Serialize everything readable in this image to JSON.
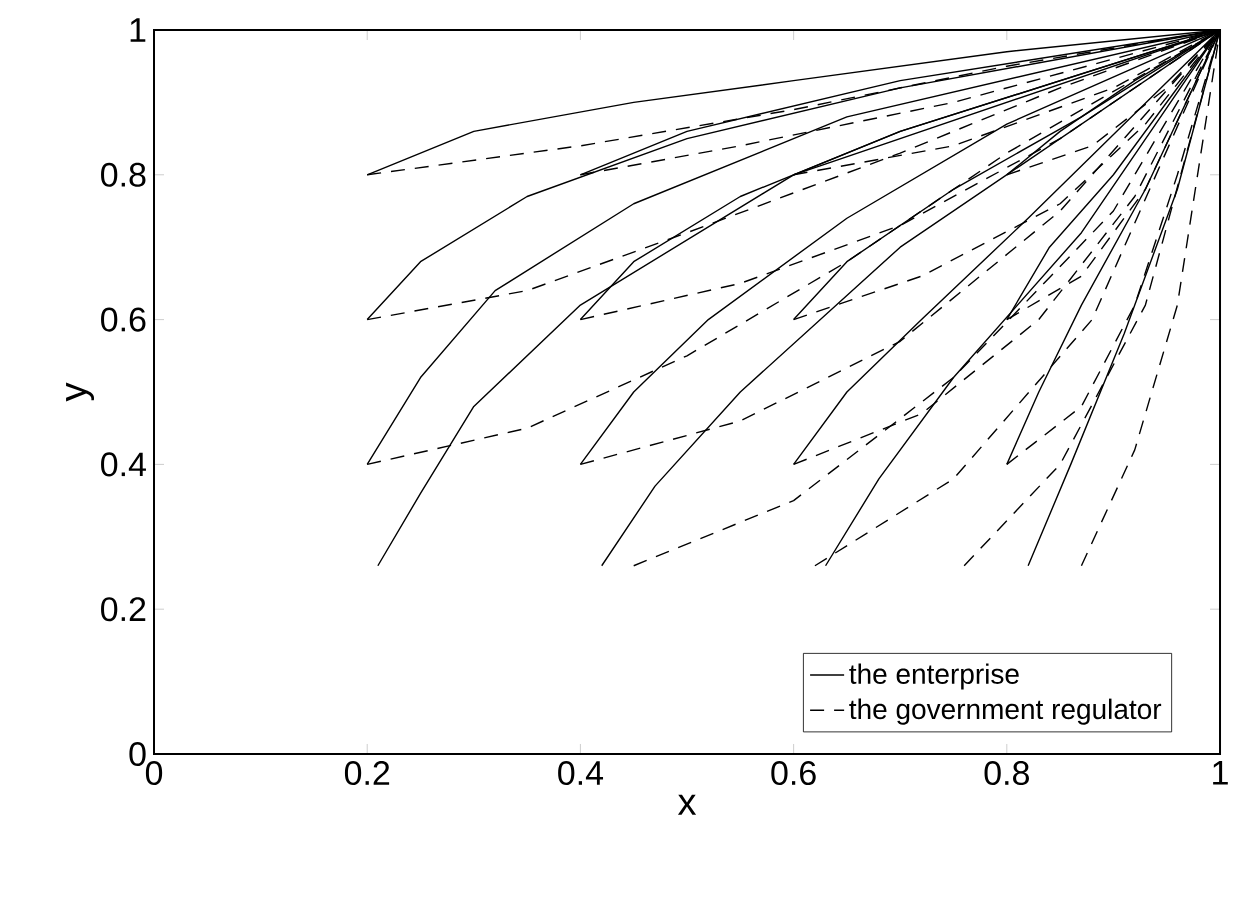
{
  "chart_data": {
    "type": "line",
    "xlabel": "x",
    "ylabel": "y",
    "xlim": [
      0,
      1
    ],
    "ylim": [
      0,
      1
    ],
    "xticks": [
      0,
      0.2,
      0.4,
      0.6,
      0.8,
      1
    ],
    "yticks": [
      0,
      0.2,
      0.4,
      0.6,
      0.8,
      1
    ],
    "legend": "bottom right",
    "grid": false,
    "marker": "none",
    "series": [
      {
        "name": "the enterprise",
        "color": "#000000",
        "line_style": "solid",
        "x": [
          0.2,
          0.3,
          0.45,
          0.6,
          0.8,
          1
        ],
        "values": [
          0.8,
          0.86,
          0.9,
          0.93,
          0.97,
          1
        ]
      },
      {
        "name": "the government regulator",
        "color": "#000000",
        "line_style": "dashed",
        "x": [
          0.2,
          0.4,
          0.6,
          0.8,
          1
        ],
        "values": [
          0.8,
          0.84,
          0.89,
          0.95,
          1
        ]
      },
      {
        "color": "#000000",
        "line_style": "solid",
        "x": [
          0.2,
          0.25,
          0.35,
          0.5,
          0.7,
          1
        ],
        "values": [
          0.6,
          0.68,
          0.77,
          0.85,
          0.92,
          1
        ]
      },
      {
        "color": "#000000",
        "line_style": "dashed",
        "x": [
          0.2,
          0.35,
          0.5,
          0.7,
          0.85,
          1
        ],
        "values": [
          0.6,
          0.64,
          0.72,
          0.83,
          0.92,
          1
        ]
      },
      {
        "color": "#000000",
        "line_style": "solid",
        "x": [
          0.2,
          0.25,
          0.32,
          0.45,
          0.65,
          1
        ],
        "values": [
          0.4,
          0.52,
          0.64,
          0.76,
          0.88,
          1
        ]
      },
      {
        "color": "#000000",
        "line_style": "dashed",
        "x": [
          0.2,
          0.35,
          0.5,
          0.65,
          0.8,
          1
        ],
        "values": [
          0.4,
          0.45,
          0.55,
          0.68,
          0.83,
          1
        ]
      },
      {
        "color": "#000000",
        "line_style": "solid",
        "x": [
          0.21,
          0.25,
          0.3,
          0.4,
          0.6,
          1
        ],
        "values": [
          0.26,
          0.36,
          0.48,
          0.62,
          0.8,
          1
        ]
      },
      {
        "color": "#000000",
        "line_style": "dashed",
        "x": [
          0.45,
          0.6,
          0.75,
          0.9,
          1
        ],
        "values": [
          0.26,
          0.35,
          0.52,
          0.75,
          1
        ]
      },
      {
        "color": "#000000",
        "line_style": "solid",
        "x": [
          0.4,
          0.5,
          0.7,
          1
        ],
        "values": [
          0.8,
          0.86,
          0.93,
          1
        ]
      },
      {
        "color": "#000000",
        "line_style": "dashed",
        "x": [
          0.4,
          0.55,
          0.75,
          1
        ],
        "values": [
          0.8,
          0.84,
          0.9,
          1
        ]
      },
      {
        "color": "#000000",
        "line_style": "solid",
        "x": [
          0.4,
          0.45,
          0.55,
          0.7,
          1
        ],
        "values": [
          0.6,
          0.68,
          0.77,
          0.86,
          1
        ]
      },
      {
        "color": "#000000",
        "line_style": "dashed",
        "x": [
          0.4,
          0.55,
          0.7,
          0.85,
          1
        ],
        "values": [
          0.6,
          0.65,
          0.73,
          0.85,
          1
        ]
      },
      {
        "color": "#000000",
        "line_style": "solid",
        "x": [
          0.4,
          0.45,
          0.52,
          0.65,
          0.8,
          1
        ],
        "values": [
          0.4,
          0.5,
          0.6,
          0.74,
          0.87,
          1
        ]
      },
      {
        "color": "#000000",
        "line_style": "dashed",
        "x": [
          0.4,
          0.55,
          0.7,
          0.85,
          1
        ],
        "values": [
          0.4,
          0.46,
          0.57,
          0.75,
          1
        ]
      },
      {
        "color": "#000000",
        "line_style": "solid",
        "x": [
          0.42,
          0.47,
          0.55,
          0.7,
          1
        ],
        "values": [
          0.26,
          0.37,
          0.5,
          0.7,
          1
        ]
      },
      {
        "color": "#000000",
        "line_style": "dashed",
        "x": [
          0.62,
          0.75,
          0.88,
          1
        ],
        "values": [
          0.26,
          0.38,
          0.6,
          1
        ]
      },
      {
        "color": "#000000",
        "line_style": "solid",
        "x": [
          0.6,
          0.7,
          0.85,
          1
        ],
        "values": [
          0.8,
          0.86,
          0.93,
          1
        ]
      },
      {
        "color": "#000000",
        "line_style": "dashed",
        "x": [
          0.6,
          0.75,
          0.9,
          1
        ],
        "values": [
          0.8,
          0.84,
          0.92,
          1
        ]
      },
      {
        "color": "#000000",
        "line_style": "solid",
        "x": [
          0.6,
          0.65,
          0.75,
          0.87,
          1
        ],
        "values": [
          0.6,
          0.68,
          0.78,
          0.88,
          1
        ]
      },
      {
        "color": "#000000",
        "line_style": "dashed",
        "x": [
          0.6,
          0.72,
          0.85,
          0.93,
          1
        ],
        "values": [
          0.6,
          0.66,
          0.76,
          0.87,
          1
        ]
      },
      {
        "color": "#000000",
        "line_style": "solid",
        "x": [
          0.6,
          0.65,
          0.72,
          0.82,
          1
        ],
        "values": [
          0.4,
          0.5,
          0.6,
          0.74,
          1
        ]
      },
      {
        "color": "#000000",
        "line_style": "dashed",
        "x": [
          0.6,
          0.72,
          0.83,
          0.92,
          1
        ],
        "values": [
          0.4,
          0.47,
          0.6,
          0.77,
          1
        ]
      },
      {
        "color": "#000000",
        "line_style": "solid",
        "x": [
          0.63,
          0.68,
          0.75,
          0.87,
          1
        ],
        "values": [
          0.26,
          0.38,
          0.52,
          0.72,
          1
        ]
      },
      {
        "color": "#000000",
        "line_style": "dashed",
        "x": [
          0.76,
          0.85,
          0.93,
          1
        ],
        "values": [
          0.26,
          0.4,
          0.62,
          1
        ]
      },
      {
        "color": "#000000",
        "line_style": "solid",
        "x": [
          0.8,
          0.85,
          0.92,
          1
        ],
        "values": [
          0.8,
          0.86,
          0.93,
          1
        ]
      },
      {
        "color": "#000000",
        "line_style": "dashed",
        "x": [
          0.8,
          0.88,
          0.95,
          1
        ],
        "values": [
          0.8,
          0.84,
          0.92,
          1
        ]
      },
      {
        "color": "#000000",
        "line_style": "solid",
        "x": [
          0.8,
          0.84,
          0.9,
          1
        ],
        "values": [
          0.6,
          0.7,
          0.8,
          1
        ]
      },
      {
        "color": "#000000",
        "line_style": "dashed",
        "x": [
          0.8,
          0.87,
          0.93,
          1
        ],
        "values": [
          0.6,
          0.66,
          0.78,
          1
        ]
      },
      {
        "color": "#000000",
        "line_style": "solid",
        "x": [
          0.8,
          0.83,
          0.87,
          0.93,
          1
        ],
        "values": [
          0.4,
          0.5,
          0.62,
          0.78,
          1
        ]
      },
      {
        "color": "#000000",
        "line_style": "dashed",
        "x": [
          0.8,
          0.87,
          0.92,
          0.96,
          1
        ],
        "values": [
          0.4,
          0.48,
          0.62,
          0.8,
          1
        ]
      },
      {
        "color": "#000000",
        "line_style": "solid",
        "x": [
          0.82,
          0.86,
          0.91,
          0.96,
          1
        ],
        "values": [
          0.26,
          0.4,
          0.58,
          0.78,
          1
        ]
      },
      {
        "color": "#000000",
        "line_style": "dashed",
        "x": [
          0.87,
          0.92,
          0.96,
          1
        ],
        "values": [
          0.26,
          0.42,
          0.62,
          1
        ]
      }
    ]
  }
}
